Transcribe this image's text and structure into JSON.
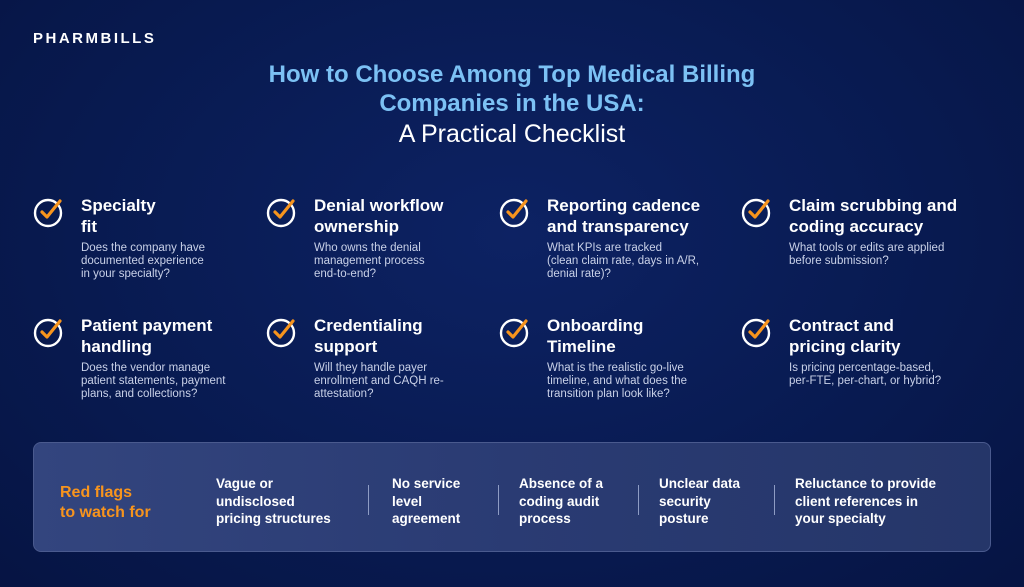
{
  "brand": "PHARMBILLS",
  "header": {
    "title_lines": [
      "How to Choose Among Top Medical Billing",
      "Companies in the USA:"
    ],
    "subtitle": "A Practical Checklist"
  },
  "checklist": [
    {
      "title": [
        "Specialty",
        "fit"
      ],
      "description": [
        "Does the company have",
        "documented experience",
        "in your specialty?"
      ]
    },
    {
      "title": [
        "Denial workflow",
        "ownership"
      ],
      "description": [
        "Who owns the denial",
        "management process",
        "end-to-end?"
      ]
    },
    {
      "title": [
        "Reporting cadence",
        "and transparency"
      ],
      "description": [
        "What KPIs are tracked",
        "(clean claim rate, days in A/R,",
        "denial rate)?"
      ]
    },
    {
      "title": [
        "Claim scrubbing and",
        "coding accuracy"
      ],
      "description": [
        "What tools or edits are applied",
        "before submission?"
      ]
    },
    {
      "title": [
        "Patient payment",
        "handling"
      ],
      "description": [
        "Does the vendor manage",
        "patient statements, payment",
        "plans, and collections?"
      ]
    },
    {
      "title": [
        "Credentialing",
        "support"
      ],
      "description": [
        "Will they handle payer",
        "enrollment and CAQH re-",
        "attestation?"
      ]
    },
    {
      "title": [
        "Onboarding",
        "Timeline"
      ],
      "description": [
        "What is the realistic go-live",
        "timeline, and what does the",
        "transition plan look like?"
      ]
    },
    {
      "title": [
        "Contract and",
        "pricing clarity"
      ],
      "description": [
        "Is pricing percentage-based,",
        "per-FTE, per-chart, or hybrid?"
      ]
    }
  ],
  "red_flags": {
    "label": [
      "Red flags",
      "to watch for"
    ],
    "items": [
      [
        "Vague or",
        "undisclosed",
        "pricing structures"
      ],
      [
        "No service",
        "level",
        "agreement"
      ],
      [
        "Absence of a",
        "coding audit",
        "process"
      ],
      [
        "Unclear data",
        "security",
        "posture"
      ],
      [
        "Reluctance to provide",
        "client references in",
        "your specialty"
      ]
    ]
  }
}
